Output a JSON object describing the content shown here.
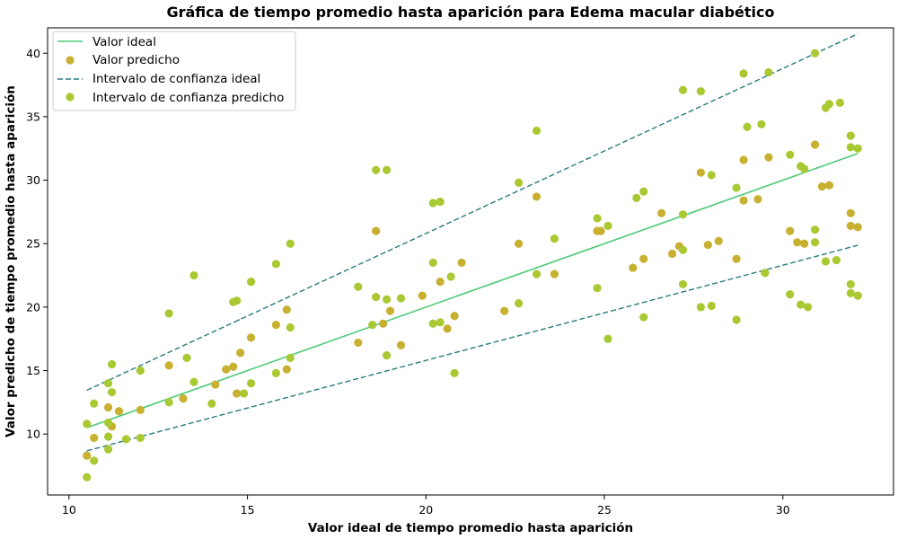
{
  "chart_data": {
    "type": "scatter",
    "title": "Gráfica de tiempo promedio hasta aparición para Edema macular diabético",
    "xlabel": "Valor ideal de tiempo promedio hasta aparición",
    "ylabel": "Valor predicho de tiempo promedio hasta aparición",
    "xlim": [
      9.4,
      33.1
    ],
    "ylim": [
      5.2,
      42.0
    ],
    "xticks": [
      10,
      15,
      20,
      25,
      30
    ],
    "yticks": [
      10,
      15,
      20,
      25,
      30,
      35,
      40
    ],
    "grid": false,
    "legend_position": "top-left",
    "colors": {
      "ideal": "#4fc978",
      "predicted": "#c8b030",
      "ci_ideal": "#2a7b7b",
      "ci_pred": "#a9c933"
    },
    "legend": [
      "Valor ideal",
      "Valor predicho",
      "Intervalo de confianza ideal",
      "Intervalo de confianza predicho"
    ],
    "series": [
      {
        "name": "Valor ideal",
        "type": "line",
        "points": [
          [
            10.5,
            10.5
          ],
          [
            32.1,
            32.1
          ]
        ]
      },
      {
        "name": "Valor predicho",
        "type": "scatter",
        "points": [
          [
            10.5,
            8.3
          ],
          [
            10.7,
            9.7
          ],
          [
            11.1,
            12.1
          ],
          [
            11.2,
            10.6
          ],
          [
            11.4,
            11.8
          ],
          [
            12.0,
            11.9
          ],
          [
            12.8,
            15.4
          ],
          [
            13.2,
            12.8
          ],
          [
            14.1,
            13.9
          ],
          [
            14.4,
            15.1
          ],
          [
            14.6,
            15.3
          ],
          [
            14.8,
            16.4
          ],
          [
            14.7,
            13.2
          ],
          [
            15.1,
            17.6
          ],
          [
            15.8,
            18.6
          ],
          [
            16.1,
            19.8
          ],
          [
            16.1,
            15.1
          ],
          [
            18.1,
            17.2
          ],
          [
            18.6,
            26.0
          ],
          [
            18.8,
            18.7
          ],
          [
            19.0,
            19.7
          ],
          [
            19.3,
            17.0
          ],
          [
            19.9,
            20.9
          ],
          [
            20.4,
            22.0
          ],
          [
            20.6,
            18.3
          ],
          [
            20.8,
            19.3
          ],
          [
            21.0,
            23.5
          ],
          [
            22.2,
            19.7
          ],
          [
            22.6,
            25.0
          ],
          [
            23.1,
            28.7
          ],
          [
            23.6,
            22.6
          ],
          [
            24.8,
            26.0
          ],
          [
            24.9,
            26.0
          ],
          [
            25.8,
            23.1
          ],
          [
            26.1,
            23.8
          ],
          [
            26.6,
            27.4
          ],
          [
            26.9,
            24.2
          ],
          [
            27.1,
            24.8
          ],
          [
            27.7,
            30.6
          ],
          [
            27.9,
            24.9
          ],
          [
            28.2,
            25.2
          ],
          [
            28.7,
            23.8
          ],
          [
            28.9,
            28.4
          ],
          [
            28.9,
            31.6
          ],
          [
            29.3,
            28.5
          ],
          [
            29.6,
            31.8
          ],
          [
            30.2,
            26.0
          ],
          [
            30.4,
            25.1
          ],
          [
            30.6,
            25.0
          ],
          [
            30.9,
            32.8
          ],
          [
            31.1,
            29.5
          ],
          [
            31.3,
            29.6
          ],
          [
            31.9,
            27.4
          ],
          [
            31.9,
            26.4
          ],
          [
            32.1,
            26.3
          ]
        ]
      },
      {
        "name": "Intervalo de confianza predicho",
        "type": "scatter",
        "points": [
          [
            10.5,
            10.8
          ],
          [
            10.5,
            6.6
          ],
          [
            10.7,
            12.4
          ],
          [
            10.7,
            7.9
          ],
          [
            11.1,
            14.0
          ],
          [
            11.1,
            10.9
          ],
          [
            11.1,
            9.8
          ],
          [
            11.1,
            8.8
          ],
          [
            11.2,
            15.5
          ],
          [
            11.2,
            13.3
          ],
          [
            11.6,
            9.6
          ],
          [
            12.0,
            15.0
          ],
          [
            12.0,
            9.7
          ],
          [
            12.8,
            19.5
          ],
          [
            12.8,
            12.5
          ],
          [
            13.3,
            16.0
          ],
          [
            13.5,
            22.5
          ],
          [
            13.5,
            14.1
          ],
          [
            14.0,
            12.4
          ],
          [
            14.6,
            20.4
          ],
          [
            14.7,
            20.5
          ],
          [
            14.9,
            13.2
          ],
          [
            15.1,
            22.0
          ],
          [
            15.1,
            14.0
          ],
          [
            15.8,
            23.4
          ],
          [
            15.8,
            14.8
          ],
          [
            16.2,
            25.0
          ],
          [
            16.2,
            18.4
          ],
          [
            16.2,
            16.0
          ],
          [
            18.1,
            21.6
          ],
          [
            18.5,
            18.6
          ],
          [
            18.6,
            30.8
          ],
          [
            18.6,
            20.8
          ],
          [
            18.9,
            30.8
          ],
          [
            18.9,
            20.6
          ],
          [
            18.9,
            16.2
          ],
          [
            19.3,
            20.7
          ],
          [
            20.2,
            28.2
          ],
          [
            20.2,
            23.5
          ],
          [
            20.2,
            18.7
          ],
          [
            20.4,
            28.3
          ],
          [
            20.4,
            18.8
          ],
          [
            20.7,
            22.4
          ],
          [
            20.8,
            14.8
          ],
          [
            22.6,
            29.8
          ],
          [
            22.6,
            20.3
          ],
          [
            23.1,
            33.9
          ],
          [
            23.1,
            22.6
          ],
          [
            23.6,
            25.4
          ],
          [
            24.8,
            27.0
          ],
          [
            24.8,
            21.5
          ],
          [
            25.1,
            26.4
          ],
          [
            25.1,
            17.5
          ],
          [
            25.9,
            28.6
          ],
          [
            26.1,
            29.1
          ],
          [
            26.1,
            19.2
          ],
          [
            27.2,
            37.1
          ],
          [
            27.2,
            27.3
          ],
          [
            27.2,
            24.5
          ],
          [
            27.2,
            21.8
          ],
          [
            27.7,
            37.0
          ],
          [
            27.7,
            20.0
          ],
          [
            28.0,
            30.4
          ],
          [
            28.0,
            20.1
          ],
          [
            28.7,
            29.4
          ],
          [
            28.7,
            19.0
          ],
          [
            28.9,
            38.4
          ],
          [
            29.6,
            38.5
          ],
          [
            29.4,
            34.4
          ],
          [
            29.0,
            34.2
          ],
          [
            29.5,
            22.7
          ],
          [
            30.2,
            32.0
          ],
          [
            30.2,
            21.0
          ],
          [
            30.5,
            31.1
          ],
          [
            30.6,
            30.9
          ],
          [
            30.7,
            20.0
          ],
          [
            30.9,
            40.0
          ],
          [
            30.9,
            26.1
          ],
          [
            30.5,
            20.2
          ],
          [
            30.9,
            25.1
          ],
          [
            31.2,
            35.7
          ],
          [
            31.3,
            36.0
          ],
          [
            31.6,
            36.1
          ],
          [
            31.2,
            23.6
          ],
          [
            31.5,
            23.7
          ],
          [
            31.9,
            33.5
          ],
          [
            31.9,
            32.6
          ],
          [
            32.1,
            32.5
          ],
          [
            31.9,
            21.8
          ],
          [
            31.9,
            21.1
          ],
          [
            32.1,
            20.9
          ]
        ]
      }
    ]
  }
}
